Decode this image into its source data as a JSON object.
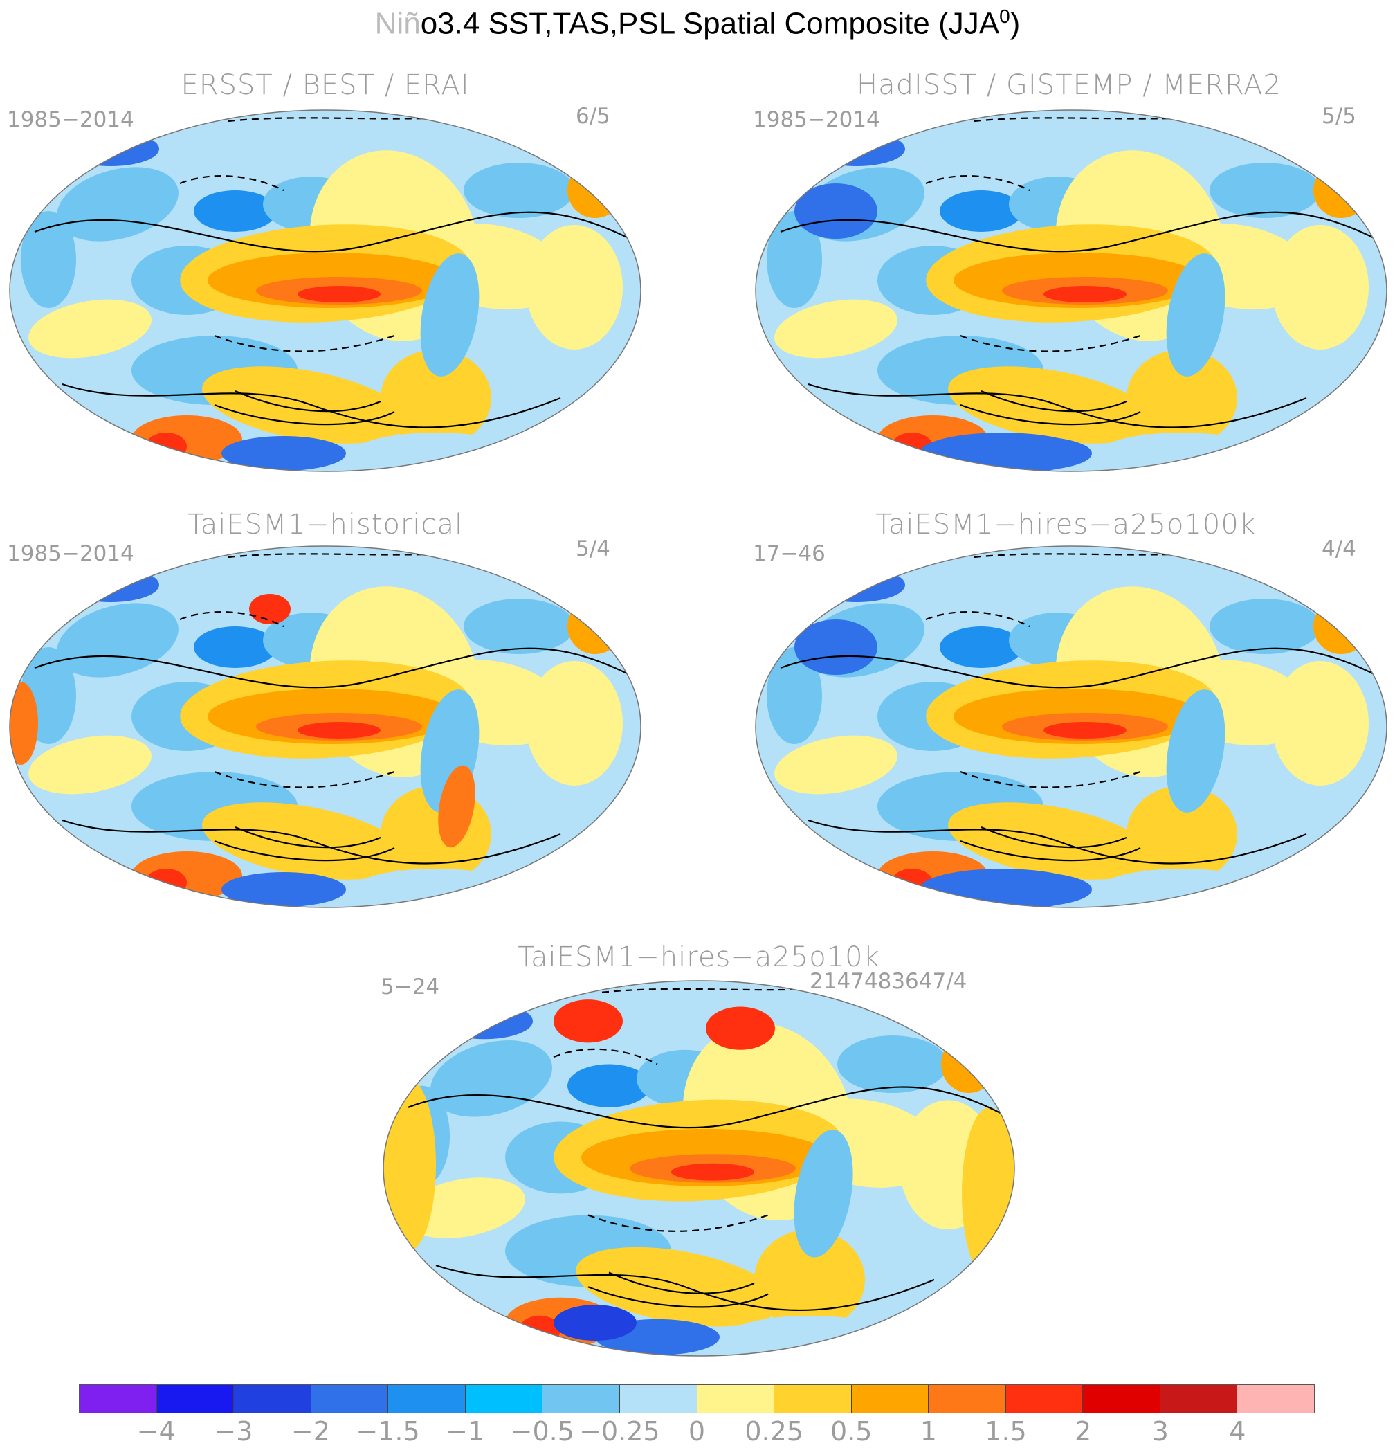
{
  "title": {
    "grey_part": "Niñ",
    "black_part": "o3.4 SST,TAS,PSL Spatial Composite (JJA",
    "superscript": "0",
    "close": ")"
  },
  "panels": [
    {
      "title": "ERSST / BEST / ERAI",
      "period": "1985−2014",
      "count": "6/5"
    },
    {
      "title": "HadISST / GISTEMP / MERRA2",
      "period": "1985−2014",
      "count": "5/5"
    },
    {
      "title": "TaiESM1−historical",
      "period": "1985−2014",
      "count": "5/4"
    },
    {
      "title": "TaiESM1−hires−a25o100k",
      "period": "17−46",
      "count": "4/4"
    },
    {
      "title": "TaiESM1−hires−a25o10k",
      "period": "5−24",
      "count": "2147483647/4"
    }
  ],
  "colorbar": {
    "colors": [
      "#8020f0",
      "#1818f0",
      "#2040e0",
      "#3070e8",
      "#1e90f0",
      "#00bfff",
      "#70c6f0",
      "#b4e0f8",
      "#fff48c",
      "#ffd22e",
      "#ffa500",
      "#ff7818",
      "#ff3010",
      "#e00000",
      "#c81818",
      "#ffb4b4"
    ],
    "ticks": [
      "−4",
      "−3",
      "−2",
      "−1.5",
      "−1",
      "−0.5",
      "−0.25",
      "0",
      "0.25",
      "0.5",
      "1",
      "1.5",
      "2",
      "3",
      "4"
    ]
  }
}
